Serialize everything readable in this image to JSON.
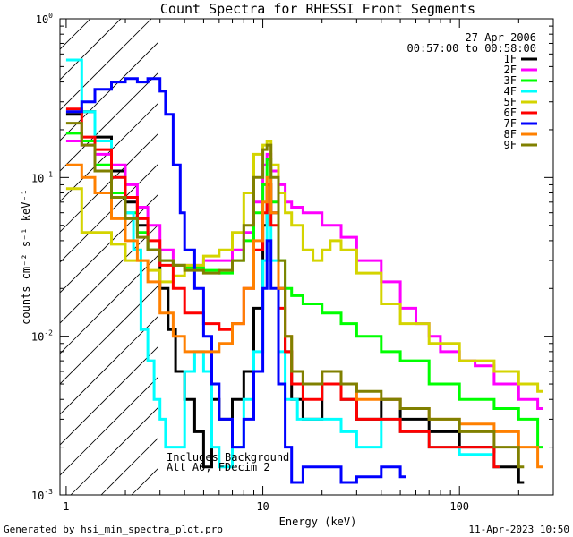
{
  "footer": {
    "generated_by": "Generated by hsi_min_spectra_plot.pro",
    "timestamp": "11-Apr-2023 10:50"
  },
  "chart_data": {
    "type": "line",
    "title": "Count Spectra for RHESSI Front Segments",
    "xlabel": "Energy (keV)",
    "ylabel": "counts cm⁻² s⁻¹ keV⁻¹",
    "xscale": "log",
    "yscale": "log",
    "xlim": [
      0.93,
      300
    ],
    "ylim": [
      0.001,
      1.0
    ],
    "x_ticks": [
      {
        "value": 1,
        "label": "1"
      },
      {
        "value": 10,
        "label": "10"
      },
      {
        "value": 100,
        "label": "100"
      }
    ],
    "y_ticks": [
      {
        "value": 1.0,
        "base": "10",
        "exp": "0"
      },
      {
        "value": 0.1,
        "base": "10",
        "exp": "-1"
      },
      {
        "value": 0.01,
        "base": "10",
        "exp": "-2"
      },
      {
        "value": 0.001,
        "base": "10",
        "exp": "-3"
      }
    ],
    "date": "27-Apr-2006",
    "time_range": "00:57:00 to 00:58:00",
    "legend_position": "top-right",
    "annotations": [
      "Includes Background",
      "Att A0, FDecim 2"
    ],
    "hatched_region_kev": [
      0.93,
      3.0
    ],
    "series": [
      {
        "name": "1F",
        "color": "#000000",
        "points": [
          [
            1.0,
            0.25
          ],
          [
            1.2,
            0.26
          ],
          [
            1.4,
            0.18
          ],
          [
            1.7,
            0.11
          ],
          [
            2.0,
            0.07
          ],
          [
            2.3,
            0.05
          ],
          [
            2.6,
            0.035
          ],
          [
            3.0,
            0.02
          ],
          [
            3.3,
            0.011
          ],
          [
            3.6,
            0.006
          ],
          [
            4.0,
            0.004
          ],
          [
            4.5,
            0.0025
          ],
          [
            5.0,
            0.0015
          ],
          [
            5.5,
            0.004
          ],
          [
            6.0,
            0.003
          ],
          [
            7.0,
            0.004
          ],
          [
            8.0,
            0.006
          ],
          [
            9.0,
            0.015
          ],
          [
            10.0,
            0.05
          ],
          [
            10.5,
            0.09
          ],
          [
            11.0,
            0.06
          ],
          [
            12.0,
            0.02
          ],
          [
            13.0,
            0.008
          ],
          [
            14.0,
            0.004
          ],
          [
            16.0,
            0.003
          ],
          [
            20.0,
            0.005
          ],
          [
            25.0,
            0.004
          ],
          [
            30.0,
            0.003
          ],
          [
            40.0,
            0.004
          ],
          [
            50.0,
            0.003
          ],
          [
            70.0,
            0.0025
          ],
          [
            100.0,
            0.002
          ],
          [
            150.0,
            0.0015
          ],
          [
            200.0,
            0.0012
          ]
        ]
      },
      {
        "name": "2F",
        "color": "#ff00ff",
        "points": [
          [
            1.0,
            0.17
          ],
          [
            1.2,
            0.16
          ],
          [
            1.4,
            0.14
          ],
          [
            1.7,
            0.12
          ],
          [
            2.0,
            0.09
          ],
          [
            2.3,
            0.065
          ],
          [
            2.6,
            0.05
          ],
          [
            3.0,
            0.035
          ],
          [
            3.5,
            0.028
          ],
          [
            4.0,
            0.028
          ],
          [
            5.0,
            0.03
          ],
          [
            6.0,
            0.03
          ],
          [
            7.0,
            0.035
          ],
          [
            8.0,
            0.045
          ],
          [
            9.0,
            0.07
          ],
          [
            10.0,
            0.12
          ],
          [
            10.5,
            0.14
          ],
          [
            11.0,
            0.11
          ],
          [
            12.0,
            0.09
          ],
          [
            13.0,
            0.07
          ],
          [
            14.0,
            0.065
          ],
          [
            16.0,
            0.06
          ],
          [
            20.0,
            0.05
          ],
          [
            25.0,
            0.042
          ],
          [
            30.0,
            0.03
          ],
          [
            40.0,
            0.022
          ],
          [
            50.0,
            0.015
          ],
          [
            60.0,
            0.012
          ],
          [
            70.0,
            0.01
          ],
          [
            80.0,
            0.008
          ],
          [
            100.0,
            0.007
          ],
          [
            120.0,
            0.0065
          ],
          [
            150.0,
            0.005
          ],
          [
            200.0,
            0.004
          ],
          [
            250.0,
            0.0035
          ]
        ]
      },
      {
        "name": "3F",
        "color": "#00ff00",
        "points": [
          [
            1.0,
            0.19
          ],
          [
            1.2,
            0.17
          ],
          [
            1.4,
            0.12
          ],
          [
            1.7,
            0.08
          ],
          [
            2.0,
            0.06
          ],
          [
            2.3,
            0.045
          ],
          [
            2.6,
            0.035
          ],
          [
            3.0,
            0.03
          ],
          [
            3.5,
            0.028
          ],
          [
            4.0,
            0.027
          ],
          [
            5.0,
            0.026
          ],
          [
            6.0,
            0.025
          ],
          [
            7.0,
            0.03
          ],
          [
            8.0,
            0.04
          ],
          [
            9.0,
            0.06
          ],
          [
            10.0,
            0.09
          ],
          [
            10.5,
            0.13
          ],
          [
            11.0,
            0.07
          ],
          [
            12.0,
            0.03
          ],
          [
            13.0,
            0.02
          ],
          [
            14.0,
            0.018
          ],
          [
            16.0,
            0.016
          ],
          [
            20.0,
            0.014
          ],
          [
            25.0,
            0.012
          ],
          [
            30.0,
            0.01
          ],
          [
            40.0,
            0.008
          ],
          [
            50.0,
            0.007
          ],
          [
            70.0,
            0.005
          ],
          [
            100.0,
            0.004
          ],
          [
            150.0,
            0.0035
          ],
          [
            200.0,
            0.003
          ],
          [
            250.0,
            0.002
          ]
        ]
      },
      {
        "name": "4F",
        "color": "#00ffff",
        "points": [
          [
            1.0,
            0.55
          ],
          [
            1.2,
            0.26
          ],
          [
            1.4,
            0.17
          ],
          [
            1.7,
            0.1
          ],
          [
            2.0,
            0.06
          ],
          [
            2.2,
            0.035
          ],
          [
            2.4,
            0.011
          ],
          [
            2.6,
            0.007
          ],
          [
            2.8,
            0.004
          ],
          [
            3.0,
            0.003
          ],
          [
            3.2,
            0.002
          ],
          [
            4.0,
            0.006
          ],
          [
            4.5,
            0.008
          ],
          [
            5.0,
            0.006
          ],
          [
            5.5,
            0.002
          ],
          [
            6.0,
            0.0015
          ],
          [
            7.0,
            0.002
          ],
          [
            8.0,
            0.004
          ],
          [
            9.0,
            0.008
          ],
          [
            10.0,
            0.03
          ],
          [
            10.5,
            0.06
          ],
          [
            11.0,
            0.03
          ],
          [
            12.0,
            0.008
          ],
          [
            13.0,
            0.004
          ],
          [
            15.0,
            0.003
          ],
          [
            20.0,
            0.003
          ],
          [
            25.0,
            0.0025
          ],
          [
            30.0,
            0.002
          ],
          [
            40.0,
            0.003
          ],
          [
            50.0,
            0.0025
          ],
          [
            70.0,
            0.002
          ],
          [
            100.0,
            0.0018
          ],
          [
            150.0,
            0.0015
          ]
        ]
      },
      {
        "name": "5F",
        "color": "#d4d400",
        "points": [
          [
            1.0,
            0.085
          ],
          [
            1.2,
            0.045
          ],
          [
            1.4,
            0.045
          ],
          [
            1.7,
            0.038
          ],
          [
            2.0,
            0.03
          ],
          [
            2.3,
            0.03
          ],
          [
            2.6,
            0.026
          ],
          [
            3.0,
            0.022
          ],
          [
            3.5,
            0.024
          ],
          [
            4.0,
            0.028
          ],
          [
            5.0,
            0.032
          ],
          [
            6.0,
            0.035
          ],
          [
            7.0,
            0.045
          ],
          [
            8.0,
            0.08
          ],
          [
            9.0,
            0.14
          ],
          [
            10.0,
            0.16
          ],
          [
            10.5,
            0.17
          ],
          [
            11.0,
            0.12
          ],
          [
            12.0,
            0.08
          ],
          [
            13.0,
            0.06
          ],
          [
            14.0,
            0.05
          ],
          [
            16.0,
            0.035
          ],
          [
            18.0,
            0.03
          ],
          [
            20.0,
            0.035
          ],
          [
            22.0,
            0.04
          ],
          [
            25.0,
            0.035
          ],
          [
            30.0,
            0.025
          ],
          [
            40.0,
            0.016
          ],
          [
            50.0,
            0.012
          ],
          [
            70.0,
            0.009
          ],
          [
            100.0,
            0.007
          ],
          [
            150.0,
            0.006
          ],
          [
            200.0,
            0.005
          ],
          [
            250.0,
            0.0045
          ]
        ]
      },
      {
        "name": "6F",
        "color": "#ff0000",
        "points": [
          [
            1.0,
            0.27
          ],
          [
            1.2,
            0.18
          ],
          [
            1.4,
            0.15
          ],
          [
            1.7,
            0.1
          ],
          [
            2.0,
            0.075
          ],
          [
            2.3,
            0.055
          ],
          [
            2.6,
            0.04
          ],
          [
            3.0,
            0.028
          ],
          [
            3.5,
            0.02
          ],
          [
            4.0,
            0.014
          ],
          [
            5.0,
            0.012
          ],
          [
            6.0,
            0.011
          ],
          [
            7.0,
            0.012
          ],
          [
            8.0,
            0.02
          ],
          [
            9.0,
            0.035
          ],
          [
            10.0,
            0.06
          ],
          [
            10.5,
            0.09
          ],
          [
            11.0,
            0.05
          ],
          [
            12.0,
            0.015
          ],
          [
            13.0,
            0.008
          ],
          [
            14.0,
            0.005
          ],
          [
            16.0,
            0.004
          ],
          [
            20.0,
            0.005
          ],
          [
            25.0,
            0.004
          ],
          [
            30.0,
            0.003
          ],
          [
            40.0,
            0.003
          ],
          [
            50.0,
            0.0025
          ],
          [
            70.0,
            0.002
          ],
          [
            100.0,
            0.002
          ],
          [
            150.0,
            0.0015
          ]
        ]
      },
      {
        "name": "7F",
        "color": "#0000ff",
        "points": [
          [
            1.0,
            0.26
          ],
          [
            1.2,
            0.3
          ],
          [
            1.4,
            0.36
          ],
          [
            1.7,
            0.4
          ],
          [
            2.0,
            0.42
          ],
          [
            2.3,
            0.4
          ],
          [
            2.6,
            0.42
          ],
          [
            3.0,
            0.35
          ],
          [
            3.2,
            0.25
          ],
          [
            3.5,
            0.12
          ],
          [
            3.8,
            0.06
          ],
          [
            4.0,
            0.035
          ],
          [
            4.5,
            0.02
          ],
          [
            5.0,
            0.01
          ],
          [
            5.5,
            0.005
          ],
          [
            6.0,
            0.003
          ],
          [
            7.0,
            0.002
          ],
          [
            8.0,
            0.003
          ],
          [
            9.0,
            0.006
          ],
          [
            10.0,
            0.02
          ],
          [
            10.5,
            0.04
          ],
          [
            11.0,
            0.02
          ],
          [
            12.0,
            0.005
          ],
          [
            13.0,
            0.002
          ],
          [
            14.0,
            0.0012
          ],
          [
            16.0,
            0.0015
          ],
          [
            20.0,
            0.0015
          ],
          [
            25.0,
            0.0012
          ],
          [
            30.0,
            0.0013
          ],
          [
            40.0,
            0.0015
          ],
          [
            50.0,
            0.0013
          ]
        ]
      },
      {
        "name": "8F",
        "color": "#ff8000",
        "points": [
          [
            1.0,
            0.12
          ],
          [
            1.2,
            0.1
          ],
          [
            1.4,
            0.08
          ],
          [
            1.7,
            0.055
          ],
          [
            2.0,
            0.04
          ],
          [
            2.3,
            0.03
          ],
          [
            2.6,
            0.022
          ],
          [
            3.0,
            0.014
          ],
          [
            3.5,
            0.01
          ],
          [
            4.0,
            0.008
          ],
          [
            5.0,
            0.008
          ],
          [
            6.0,
            0.009
          ],
          [
            7.0,
            0.012
          ],
          [
            8.0,
            0.02
          ],
          [
            9.0,
            0.04
          ],
          [
            10.0,
            0.07
          ],
          [
            10.5,
            0.1
          ],
          [
            11.0,
            0.06
          ],
          [
            12.0,
            0.02
          ],
          [
            13.0,
            0.01
          ],
          [
            14.0,
            0.006
          ],
          [
            16.0,
            0.005
          ],
          [
            20.0,
            0.006
          ],
          [
            25.0,
            0.005
          ],
          [
            30.0,
            0.004
          ],
          [
            40.0,
            0.004
          ],
          [
            50.0,
            0.0035
          ],
          [
            70.0,
            0.003
          ],
          [
            100.0,
            0.0028
          ],
          [
            150.0,
            0.0025
          ],
          [
            200.0,
            0.002
          ],
          [
            250.0,
            0.0015
          ]
        ]
      },
      {
        "name": "9F",
        "color": "#808000",
        "points": [
          [
            1.0,
            0.22
          ],
          [
            1.2,
            0.16
          ],
          [
            1.4,
            0.11
          ],
          [
            1.7,
            0.075
          ],
          [
            2.0,
            0.055
          ],
          [
            2.3,
            0.042
          ],
          [
            2.6,
            0.035
          ],
          [
            3.0,
            0.03
          ],
          [
            3.5,
            0.028
          ],
          [
            4.0,
            0.026
          ],
          [
            5.0,
            0.025
          ],
          [
            6.0,
            0.026
          ],
          [
            7.0,
            0.03
          ],
          [
            8.0,
            0.05
          ],
          [
            9.0,
            0.1
          ],
          [
            10.0,
            0.15
          ],
          [
            10.5,
            0.16
          ],
          [
            11.0,
            0.1
          ],
          [
            12.0,
            0.03
          ],
          [
            13.0,
            0.01
          ],
          [
            14.0,
            0.006
          ],
          [
            16.0,
            0.005
          ],
          [
            20.0,
            0.006
          ],
          [
            25.0,
            0.005
          ],
          [
            30.0,
            0.0045
          ],
          [
            40.0,
            0.004
          ],
          [
            50.0,
            0.0035
          ],
          [
            70.0,
            0.003
          ],
          [
            100.0,
            0.0025
          ],
          [
            150.0,
            0.002
          ],
          [
            200.0,
            0.0015
          ]
        ]
      }
    ]
  }
}
